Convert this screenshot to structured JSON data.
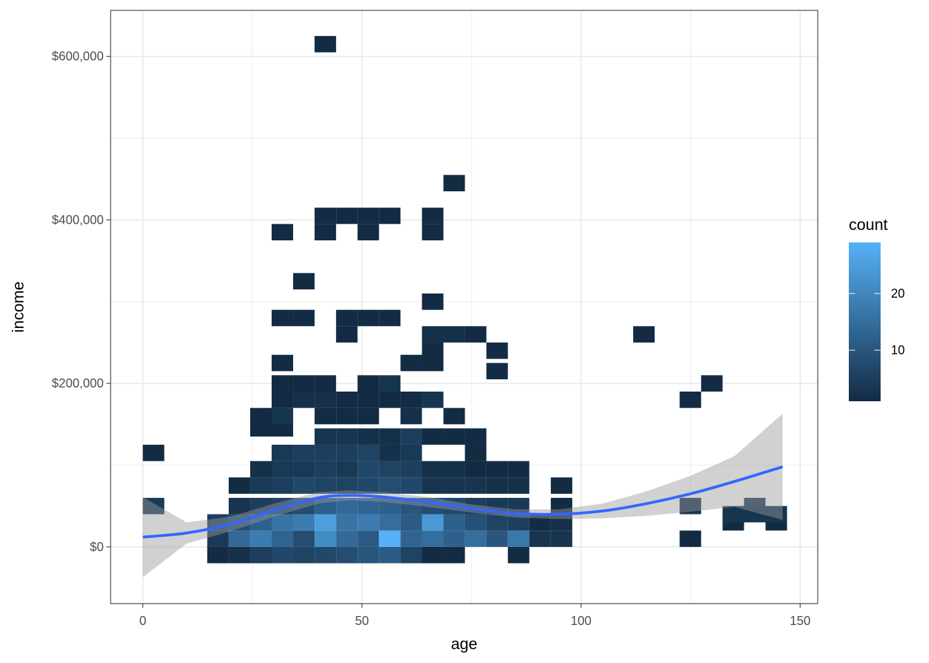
{
  "chart_data": {
    "type": "heatmap",
    "subtype": "2d-bin heatmap with smooth trend line and confidence band",
    "title": "",
    "xlabel": "age",
    "ylabel": "income",
    "xlim": [
      -7.3,
      153.7
    ],
    "ylim": [
      -69000,
      660000
    ],
    "x_ticks": [
      0,
      50,
      100,
      150
    ],
    "y_ticks": [
      0,
      200000,
      400000,
      600000
    ],
    "y_tick_labels": [
      "$0",
      "$200,000",
      "$400,000",
      "$600,000"
    ],
    "x_tick_labels": [
      "0",
      "50",
      "100",
      "150"
    ],
    "grid": true,
    "bin_width_x": 4.9,
    "bin_height_y": 20000,
    "colors": {
      "low": "#132b43",
      "high": "#56b1f7",
      "smooth_line": "#3366ff",
      "band": "#999999",
      "grid": "#ebebeb",
      "panel_border": "#333333"
    },
    "legend": {
      "title": "count",
      "position": "right",
      "range": [
        1,
        29
      ],
      "ticks": [
        10,
        20
      ],
      "tick_labels": [
        "10",
        "20"
      ]
    },
    "bins": [
      {
        "x": 2.45,
        "y": 50000,
        "count": 4
      },
      {
        "x": 2.45,
        "y": 115000,
        "count": 1
      },
      {
        "x": 17.15,
        "y": -10000,
        "count": 1
      },
      {
        "x": 17.15,
        "y": 10000,
        "count": 4
      },
      {
        "x": 17.15,
        "y": 30000,
        "count": 5
      },
      {
        "x": 22.05,
        "y": -10000,
        "count": 2
      },
      {
        "x": 22.05,
        "y": 10000,
        "count": 14
      },
      {
        "x": 22.05,
        "y": 30000,
        "count": 8
      },
      {
        "x": 22.05,
        "y": 50000,
        "count": 3
      },
      {
        "x": 22.05,
        "y": 75000,
        "count": 1
      },
      {
        "x": 26.95,
        "y": -10000,
        "count": 5
      },
      {
        "x": 26.95,
        "y": 10000,
        "count": 18
      },
      {
        "x": 26.95,
        "y": 30000,
        "count": 12
      },
      {
        "x": 26.95,
        "y": 50000,
        "count": 5
      },
      {
        "x": 26.95,
        "y": 75000,
        "count": 4
      },
      {
        "x": 26.95,
        "y": 95000,
        "count": 2
      },
      {
        "x": 26.95,
        "y": 145000,
        "count": 1
      },
      {
        "x": 26.95,
        "y": 160000,
        "count": 1
      },
      {
        "x": 31.85,
        "y": -10000,
        "count": 7
      },
      {
        "x": 31.85,
        "y": 10000,
        "count": 13
      },
      {
        "x": 31.85,
        "y": 30000,
        "count": 16
      },
      {
        "x": 31.85,
        "y": 50000,
        "count": 6
      },
      {
        "x": 31.85,
        "y": 75000,
        "count": 5
      },
      {
        "x": 31.85,
        "y": 95000,
        "count": 4
      },
      {
        "x": 31.85,
        "y": 115000,
        "count": 4
      },
      {
        "x": 31.85,
        "y": 145000,
        "count": 1
      },
      {
        "x": 31.85,
        "y": 160000,
        "count": 3
      },
      {
        "x": 31.85,
        "y": 180000,
        "count": 1
      },
      {
        "x": 31.85,
        "y": 200000,
        "count": 1
      },
      {
        "x": 31.85,
        "y": 225000,
        "count": 1
      },
      {
        "x": 31.85,
        "y": 280000,
        "count": 1
      },
      {
        "x": 31.85,
        "y": 385000,
        "count": 1
      },
      {
        "x": 36.75,
        "y": -10000,
        "count": 6
      },
      {
        "x": 36.75,
        "y": 10000,
        "count": 8
      },
      {
        "x": 36.75,
        "y": 30000,
        "count": 18
      },
      {
        "x": 36.75,
        "y": 50000,
        "count": 8
      },
      {
        "x": 36.75,
        "y": 75000,
        "count": 7
      },
      {
        "x": 36.75,
        "y": 95000,
        "count": 4
      },
      {
        "x": 36.75,
        "y": 115000,
        "count": 5
      },
      {
        "x": 36.75,
        "y": 180000,
        "count": 2
      },
      {
        "x": 36.75,
        "y": 200000,
        "count": 1
      },
      {
        "x": 36.75,
        "y": 280000,
        "count": 1
      },
      {
        "x": 36.75,
        "y": 325000,
        "count": 1
      },
      {
        "x": 41.65,
        "y": -10000,
        "count": 7
      },
      {
        "x": 41.65,
        "y": 10000,
        "count": 21
      },
      {
        "x": 41.65,
        "y": 30000,
        "count": 25
      },
      {
        "x": 41.65,
        "y": 50000,
        "count": 12
      },
      {
        "x": 41.65,
        "y": 75000,
        "count": 6
      },
      {
        "x": 41.65,
        "y": 95000,
        "count": 5
      },
      {
        "x": 41.65,
        "y": 115000,
        "count": 5
      },
      {
        "x": 41.65,
        "y": 135000,
        "count": 3
      },
      {
        "x": 41.65,
        "y": 160000,
        "count": 1
      },
      {
        "x": 41.65,
        "y": 180000,
        "count": 2
      },
      {
        "x": 41.65,
        "y": 200000,
        "count": 1
      },
      {
        "x": 41.65,
        "y": 385000,
        "count": 1
      },
      {
        "x": 41.65,
        "y": 405000,
        "count": 1
      },
      {
        "x": 41.65,
        "y": 615000,
        "count": 1
      },
      {
        "x": 46.55,
        "y": -10000,
        "count": 8
      },
      {
        "x": 46.55,
        "y": 10000,
        "count": 14
      },
      {
        "x": 46.55,
        "y": 30000,
        "count": 16
      },
      {
        "x": 46.55,
        "y": 50000,
        "count": 14
      },
      {
        "x": 46.55,
        "y": 75000,
        "count": 6
      },
      {
        "x": 46.55,
        "y": 95000,
        "count": 4
      },
      {
        "x": 46.55,
        "y": 115000,
        "count": 5
      },
      {
        "x": 46.55,
        "y": 135000,
        "count": 3
      },
      {
        "x": 46.55,
        "y": 160000,
        "count": 1
      },
      {
        "x": 46.55,
        "y": 180000,
        "count": 1
      },
      {
        "x": 46.55,
        "y": 260000,
        "count": 1
      },
      {
        "x": 46.55,
        "y": 280000,
        "count": 1
      },
      {
        "x": 46.55,
        "y": 405000,
        "count": 1
      },
      {
        "x": 51.45,
        "y": -10000,
        "count": 10
      },
      {
        "x": 51.45,
        "y": 10000,
        "count": 11
      },
      {
        "x": 51.45,
        "y": 30000,
        "count": 18
      },
      {
        "x": 51.45,
        "y": 50000,
        "count": 13
      },
      {
        "x": 51.45,
        "y": 75000,
        "count": 7
      },
      {
        "x": 51.45,
        "y": 95000,
        "count": 7
      },
      {
        "x": 51.45,
        "y": 115000,
        "count": 6
      },
      {
        "x": 51.45,
        "y": 135000,
        "count": 2
      },
      {
        "x": 51.45,
        "y": 160000,
        "count": 1
      },
      {
        "x": 51.45,
        "y": 180000,
        "count": 1
      },
      {
        "x": 51.45,
        "y": 200000,
        "count": 1
      },
      {
        "x": 51.45,
        "y": 280000,
        "count": 1
      },
      {
        "x": 51.45,
        "y": 385000,
        "count": 1
      },
      {
        "x": 51.45,
        "y": 405000,
        "count": 1
      },
      {
        "x": 56.35,
        "y": -10000,
        "count": 11
      },
      {
        "x": 56.35,
        "y": 10000,
        "count": 29
      },
      {
        "x": 56.35,
        "y": 30000,
        "count": 15
      },
      {
        "x": 56.35,
        "y": 50000,
        "count": 12
      },
      {
        "x": 56.35,
        "y": 75000,
        "count": 8
      },
      {
        "x": 56.35,
        "y": 95000,
        "count": 6
      },
      {
        "x": 56.35,
        "y": 115000,
        "count": 2
      },
      {
        "x": 56.35,
        "y": 135000,
        "count": 2
      },
      {
        "x": 56.35,
        "y": 180000,
        "count": 1
      },
      {
        "x": 56.35,
        "y": 200000,
        "count": 3
      },
      {
        "x": 56.35,
        "y": 280000,
        "count": 1
      },
      {
        "x": 56.35,
        "y": 405000,
        "count": 1
      },
      {
        "x": 61.25,
        "y": -10000,
        "count": 6
      },
      {
        "x": 61.25,
        "y": 10000,
        "count": 13
      },
      {
        "x": 61.25,
        "y": 30000,
        "count": 11
      },
      {
        "x": 61.25,
        "y": 50000,
        "count": 10
      },
      {
        "x": 61.25,
        "y": 75000,
        "count": 7
      },
      {
        "x": 61.25,
        "y": 95000,
        "count": 5
      },
      {
        "x": 61.25,
        "y": 115000,
        "count": 4
      },
      {
        "x": 61.25,
        "y": 135000,
        "count": 5
      },
      {
        "x": 61.25,
        "y": 160000,
        "count": 2
      },
      {
        "x": 61.25,
        "y": 180000,
        "count": 1
      },
      {
        "x": 61.25,
        "y": 225000,
        "count": 1
      },
      {
        "x": 66.15,
        "y": -10000,
        "count": 1
      },
      {
        "x": 66.15,
        "y": 10000,
        "count": 15
      },
      {
        "x": 66.15,
        "y": 30000,
        "count": 24
      },
      {
        "x": 66.15,
        "y": 50000,
        "count": 8
      },
      {
        "x": 66.15,
        "y": 75000,
        "count": 3
      },
      {
        "x": 66.15,
        "y": 95000,
        "count": 2
      },
      {
        "x": 66.15,
        "y": 135000,
        "count": 1
      },
      {
        "x": 66.15,
        "y": 180000,
        "count": 3
      },
      {
        "x": 66.15,
        "y": 225000,
        "count": 1
      },
      {
        "x": 66.15,
        "y": 240000,
        "count": 1
      },
      {
        "x": 66.15,
        "y": 260000,
        "count": 2
      },
      {
        "x": 66.15,
        "y": 300000,
        "count": 1
      },
      {
        "x": 66.15,
        "y": 385000,
        "count": 1
      },
      {
        "x": 66.15,
        "y": 405000,
        "count": 1
      },
      {
        "x": 71.05,
        "y": -10000,
        "count": 1
      },
      {
        "x": 71.05,
        "y": 10000,
        "count": 12
      },
      {
        "x": 71.05,
        "y": 30000,
        "count": 12
      },
      {
        "x": 71.05,
        "y": 50000,
        "count": 7
      },
      {
        "x": 71.05,
        "y": 75000,
        "count": 3
      },
      {
        "x": 71.05,
        "y": 95000,
        "count": 2
      },
      {
        "x": 71.05,
        "y": 135000,
        "count": 1
      },
      {
        "x": 71.05,
        "y": 160000,
        "count": 1
      },
      {
        "x": 71.05,
        "y": 260000,
        "count": 2
      },
      {
        "x": 71.05,
        "y": 445000,
        "count": 1
      },
      {
        "x": 75.95,
        "y": 10000,
        "count": 15
      },
      {
        "x": 75.95,
        "y": 30000,
        "count": 9
      },
      {
        "x": 75.95,
        "y": 50000,
        "count": 5
      },
      {
        "x": 75.95,
        "y": 75000,
        "count": 3
      },
      {
        "x": 75.95,
        "y": 95000,
        "count": 1
      },
      {
        "x": 75.95,
        "y": 115000,
        "count": 1
      },
      {
        "x": 75.95,
        "y": 135000,
        "count": 1
      },
      {
        "x": 75.95,
        "y": 260000,
        "count": 1
      },
      {
        "x": 80.85,
        "y": 10000,
        "count": 10
      },
      {
        "x": 80.85,
        "y": 30000,
        "count": 6
      },
      {
        "x": 80.85,
        "y": 50000,
        "count": 4
      },
      {
        "x": 80.85,
        "y": 75000,
        "count": 2
      },
      {
        "x": 80.85,
        "y": 95000,
        "count": 1
      },
      {
        "x": 80.85,
        "y": 215000,
        "count": 1
      },
      {
        "x": 80.85,
        "y": 240000,
        "count": 1
      },
      {
        "x": 85.75,
        "y": -10000,
        "count": 1
      },
      {
        "x": 85.75,
        "y": 10000,
        "count": 17
      },
      {
        "x": 85.75,
        "y": 30000,
        "count": 5
      },
      {
        "x": 85.75,
        "y": 50000,
        "count": 4
      },
      {
        "x": 85.75,
        "y": 75000,
        "count": 2
      },
      {
        "x": 85.75,
        "y": 95000,
        "count": 1
      },
      {
        "x": 90.65,
        "y": 10000,
        "count": 3
      },
      {
        "x": 90.65,
        "y": 30000,
        "count": 1
      },
      {
        "x": 95.55,
        "y": 10000,
        "count": 3
      },
      {
        "x": 95.55,
        "y": 30000,
        "count": 2
      },
      {
        "x": 95.55,
        "y": 50000,
        "count": 1
      },
      {
        "x": 95.55,
        "y": 75000,
        "count": 1
      },
      {
        "x": 114.35,
        "y": 260000,
        "count": 1
      },
      {
        "x": 124.95,
        "y": 10000,
        "count": 1
      },
      {
        "x": 124.95,
        "y": 50000,
        "count": 3
      },
      {
        "x": 124.95,
        "y": 180000,
        "count": 1
      },
      {
        "x": 129.85,
        "y": 200000,
        "count": 1
      },
      {
        "x": 134.75,
        "y": 30000,
        "count": 1
      },
      {
        "x": 134.75,
        "y": 40000,
        "count": 3
      },
      {
        "x": 139.65,
        "y": 50000,
        "count": 4
      },
      {
        "x": 139.65,
        "y": 40000,
        "count": 3
      },
      {
        "x": 144.55,
        "y": 30000,
        "count": 1
      },
      {
        "x": 144.55,
        "y": 40000,
        "count": 3
      }
    ],
    "smooth": {
      "x": [
        0,
        10,
        20,
        30,
        40,
        47,
        55,
        65,
        75,
        85,
        95,
        105,
        115,
        125,
        135,
        146
      ],
      "y": [
        12000,
        17000,
        28000,
        45000,
        60000,
        63000,
        61000,
        55000,
        47000,
        41000,
        40000,
        44000,
        53000,
        65000,
        80000,
        98000
      ],
      "lower": [
        -37000,
        4000,
        19000,
        37000,
        53000,
        57000,
        55000,
        49000,
        42000,
        36000,
        34000,
        35000,
        38000,
        43000,
        49000,
        33000
      ],
      "upper": [
        61000,
        30000,
        37000,
        53000,
        67000,
        69000,
        67000,
        61000,
        52000,
        46000,
        46000,
        53000,
        68000,
        87000,
        111000,
        163000
      ]
    }
  }
}
